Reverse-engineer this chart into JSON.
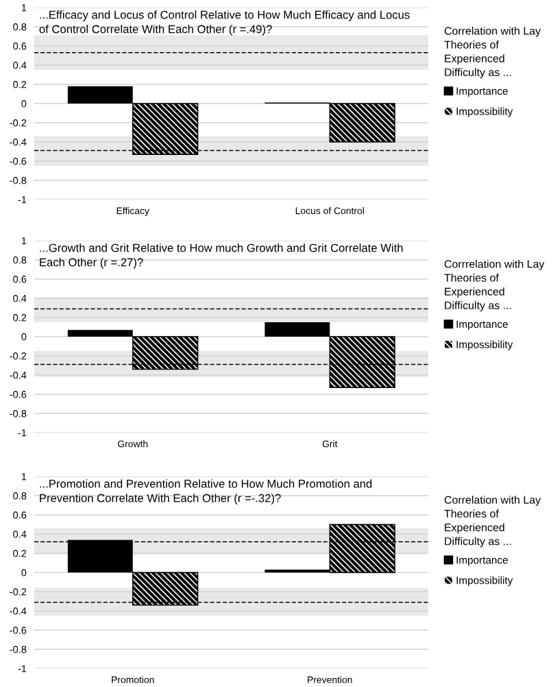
{
  "chart_data": [
    {
      "type": "bar",
      "title": "...Efficacy and Locus of Control Relative to How Much Efficacy and Locus of Control Correlate With Each Other (r =.49)?",
      "legend_title": "Correlation with Lay Theories of Experienced Difficulty as ...",
      "categories": [
        "Efficacy",
        "Locus of Control"
      ],
      "series": [
        {
          "name": "Importance",
          "color": "#000000",
          "values": [
            0.18,
            0.01
          ]
        },
        {
          "name": "Impossibility",
          "color": "#000000",
          "values": [
            -0.53,
            -0.4
          ]
        }
      ],
      "ylim": [
        -1,
        1
      ],
      "yticks": [
        {
          "value": -1,
          "label": "-1"
        },
        {
          "value": -0.8,
          "label": "-0.8"
        },
        {
          "value": -0.6,
          "label": "-0.6"
        },
        {
          "value": -0.4,
          "label": "-0.4"
        },
        {
          "value": -0.2,
          "label": "-0.2"
        },
        0,
        0.2,
        0.4,
        0.6,
        0.8,
        1
      ],
      "ref_lines": [
        {
          "axis": "y",
          "value": 0.53,
          "color": "#000000",
          "line_style": "dashed"
        },
        {
          "axis": "y",
          "value": -0.49,
          "color": "#000000",
          "line_style": "dashed"
        }
      ],
      "bands": [
        {
          "axis": "y",
          "from": 0.35,
          "to": 0.71,
          "color": "#e8e8e8"
        },
        {
          "axis": "y",
          "from": -0.65,
          "to": -0.34,
          "color": "#e8e8e8"
        }
      ],
      "grid": "y",
      "legend": "right"
    },
    {
      "type": "bar",
      "title": "...Growth and Grit Relative to How much Growth and Grit Correlate With Each Other (r =.27)?",
      "legend_title": "Corrrelation with Lay Theories of Experienced Difficulty as ...",
      "categories": [
        "Growth",
        "Grit"
      ],
      "series": [
        {
          "name": "Importance",
          "color": "#000000",
          "values": [
            0.07,
            0.15
          ]
        },
        {
          "name": "Impossibility",
          "color": "#000000",
          "values": [
            -0.34,
            -0.53
          ]
        }
      ],
      "ylim": [
        -1,
        1
      ],
      "yticks": [
        {
          "value": -1,
          "label": "-1"
        },
        {
          "value": -0.8,
          "label": "-0.8"
        },
        {
          "value": -0.6,
          "label": "-0.6"
        },
        {
          "value": -0.4,
          "label": "-0.4"
        },
        {
          "value": -0.2,
          "label": "-0.2"
        },
        0,
        0.2,
        0.4,
        0.6,
        0.8,
        1
      ],
      "ref_lines": [
        {
          "axis": "y",
          "value": 0.29,
          "color": "#000000",
          "line_style": "dashed"
        },
        {
          "axis": "y",
          "value": -0.29,
          "color": "#000000",
          "line_style": "dashed"
        }
      ],
      "bands": [
        {
          "axis": "y",
          "from": 0.15,
          "to": 0.41,
          "color": "#e8e8e8"
        },
        {
          "axis": "y",
          "from": -0.42,
          "to": -0.15,
          "color": "#e8e8e8"
        }
      ],
      "grid": "y",
      "legend": "right"
    },
    {
      "type": "bar",
      "title": "...Promotion and Prevention Relative to How Much Promotion and Prevention Correlate With Each Other (r =-.32)?",
      "legend_title": "Correlation with Lay Theories of Experienced Difficulty as ...",
      "categories": [
        "Promotion",
        "Prevention"
      ],
      "series": [
        {
          "name": "Importance",
          "color": "#000000",
          "values": [
            0.34,
            0.03
          ]
        },
        {
          "name": "Impossibility",
          "color": "#000000",
          "values": [
            -0.34,
            0.5
          ]
        }
      ],
      "ylim": [
        -1,
        1
      ],
      "yticks": [
        {
          "value": -1,
          "label": "-1"
        },
        {
          "value": -0.8,
          "label": "-0.8"
        },
        {
          "value": -0.6,
          "label": "-0.6"
        },
        {
          "value": -0.4,
          "label": "-0.4"
        },
        {
          "value": -0.2,
          "label": "-0.2"
        },
        0,
        0.2,
        0.4,
        0.6,
        0.8,
        1
      ],
      "ref_lines": [
        {
          "axis": "y",
          "value": 0.32,
          "color": "#000000",
          "line_style": "dashed"
        },
        {
          "axis": "y",
          "value": -0.31,
          "color": "#000000",
          "line_style": "dashed"
        }
      ],
      "bands": [
        {
          "axis": "y",
          "from": 0.19,
          "to": 0.46,
          "color": "#e8e8e8"
        },
        {
          "axis": "y",
          "from": -0.45,
          "to": -0.16,
          "color": "#e8e8e8"
        }
      ],
      "grid": "y",
      "legend": "right"
    }
  ]
}
